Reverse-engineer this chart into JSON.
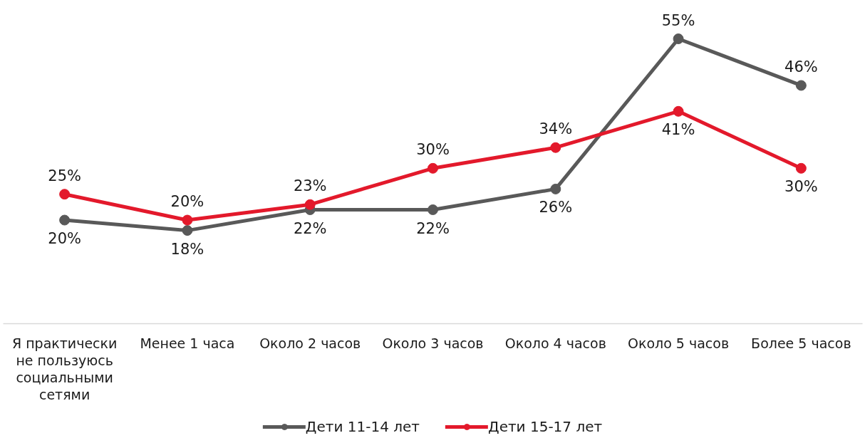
{
  "chart_data": {
    "type": "line",
    "categories": [
      "Я практически не пользуюсь социальными сетями",
      "Менее 1 часа",
      "Около 2 часов",
      "Около 3 часов",
      "Около 4 часов",
      "Около 5 часов",
      "Более 5 часов"
    ],
    "series": [
      {
        "name": "Дети 11-14 лет",
        "color": "#595959",
        "values": [
          20,
          18,
          22,
          22,
          26,
          55,
          46
        ],
        "value_labels": [
          "20%",
          "18%",
          "22%",
          "22%",
          "26%",
          "55%",
          "46%"
        ]
      },
      {
        "name": "Дети 15-17 лет",
        "color": "#e3192b",
        "values": [
          25,
          20,
          23,
          30,
          34,
          41,
          30
        ],
        "value_labels": [
          "25%",
          "20%",
          "23%",
          "30%",
          "34%",
          "41%",
          "30%"
        ]
      }
    ],
    "marker": "circle",
    "line_style": "solid",
    "legend": "bottom",
    "grid": false,
    "tick_labels": "x"
  }
}
